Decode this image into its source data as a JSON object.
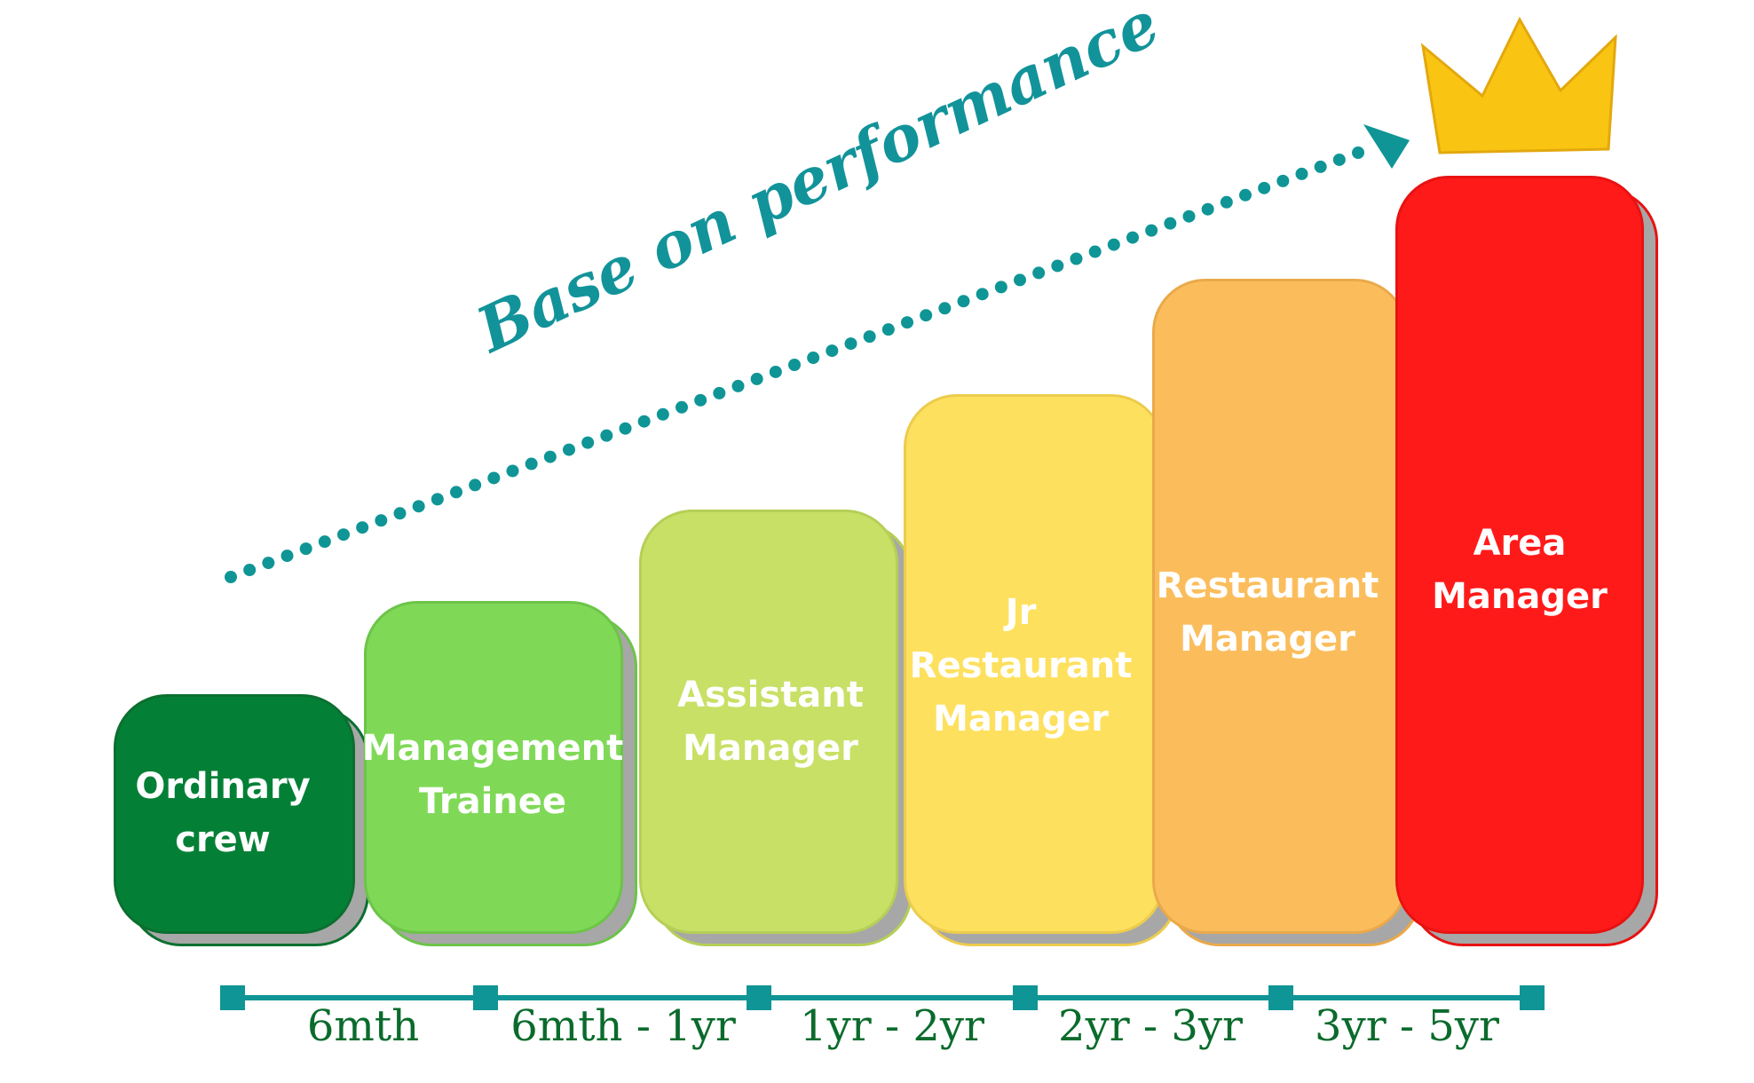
{
  "headline": "Base on performance",
  "levels": [
    {
      "lines": [
        "Ordinary",
        "crew"
      ],
      "color": "#048036",
      "edge": "#0b6f30",
      "shadow": "#a7a7a7"
    },
    {
      "lines": [
        "Management",
        "Trainee"
      ],
      "color": "#7fd957",
      "edge": "#6cc448",
      "shadow": "#a7a7a7"
    },
    {
      "lines": [
        "Assistant",
        "Manager"
      ],
      "color": "#c8e066",
      "edge": "#b5cf57",
      "shadow": "#a7a7a7"
    },
    {
      "lines": [
        "Jr",
        "Restaurant",
        "Manager"
      ],
      "color": "#fde05e",
      "edge": "#eccc4d",
      "shadow": "#a7a7a7"
    },
    {
      "lines": [
        "Restaurant",
        "Manager"
      ],
      "color": "#fbbd5c",
      "edge": "#eaa94a",
      "shadow": "#a7a7a7"
    },
    {
      "lines": [
        "Area",
        "Manager"
      ],
      "color": "#ff1a1a",
      "edge": "#e81212",
      "shadow": "#a7a7a7"
    }
  ],
  "timeline": {
    "labels": [
      "6mth",
      "6mth - 1yr",
      "1yr - 2yr",
      "2yr - 3yr",
      "3yr - 5yr"
    ],
    "color": "#0f9596"
  },
  "arrow_color": "#0f9596",
  "crown_color": "#f9c512"
}
